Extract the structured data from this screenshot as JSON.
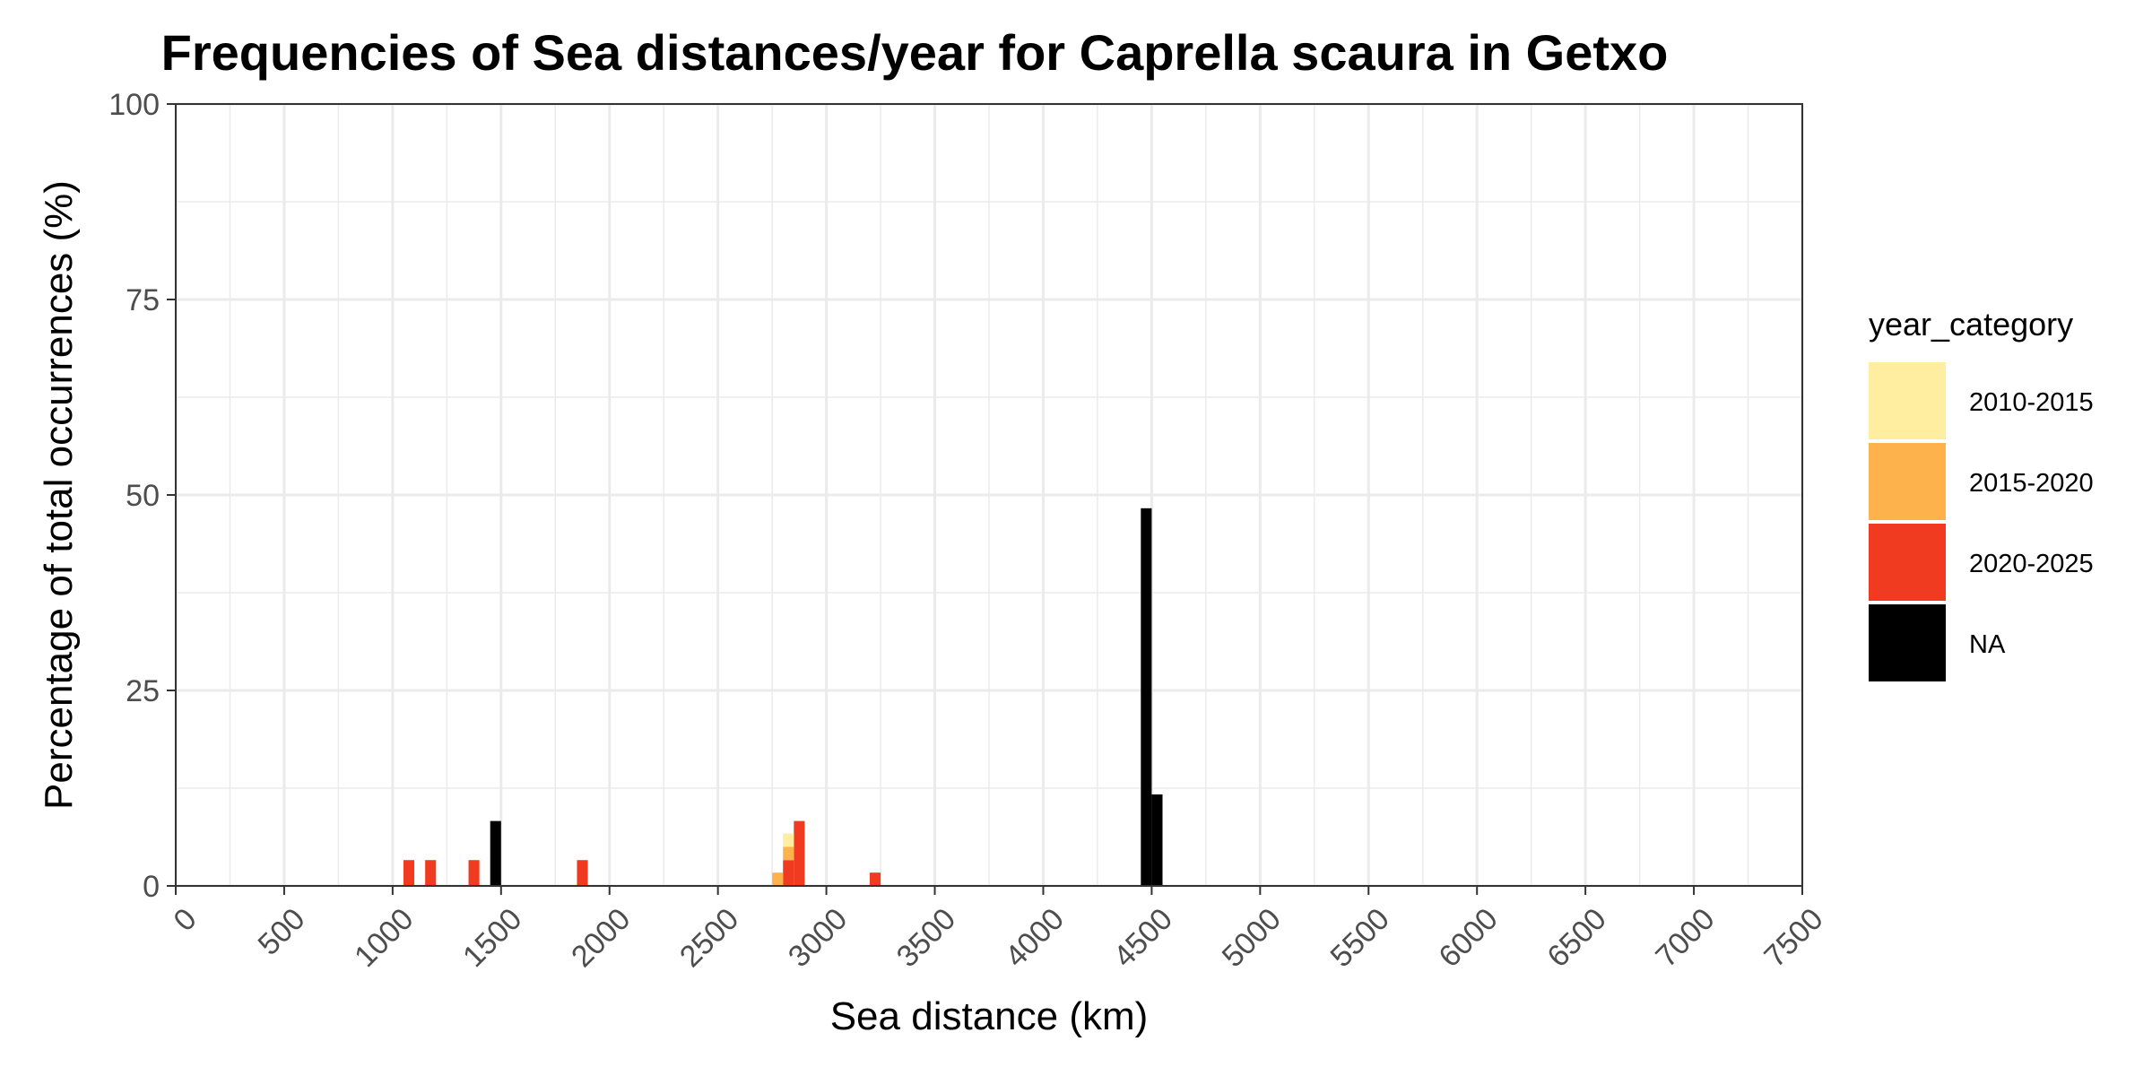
{
  "chart_data": {
    "type": "bar",
    "stacked": true,
    "title": "Frequencies of Sea distances/year for Caprella scaura in Getxo",
    "xlabel": "Sea distance (km)",
    "ylabel": "Percentage of total occurrences (%)",
    "xlim": [
      0,
      7500
    ],
    "ylim": [
      0,
      100
    ],
    "bin_width": 50,
    "x_ticks": [
      0,
      500,
      1000,
      1500,
      2000,
      2500,
      3000,
      3500,
      4000,
      4500,
      5000,
      5500,
      6000,
      6500,
      7000,
      7500
    ],
    "y_ticks": [
      0,
      25,
      50,
      75,
      100
    ],
    "grid": true,
    "legend": {
      "title": "year_category",
      "position": "right",
      "entries": [
        "2010-2015",
        "2015-2020",
        "2020-2025",
        "NA"
      ]
    },
    "colors": {
      "2010-2015": "#FFEDA0",
      "2015-2020": "#FEB24C",
      "2020-2025": "#F03B20",
      "NA": "#000000"
    },
    "series": [
      {
        "name": "NA",
        "bins": [
          {
            "x": 1475,
            "value": 8.3
          },
          {
            "x": 4475,
            "value": 48.3
          },
          {
            "x": 4525,
            "value": 11.7
          }
        ]
      },
      {
        "name": "2020-2025",
        "bins": [
          {
            "x": 1075,
            "value": 3.3
          },
          {
            "x": 1175,
            "value": 3.3
          },
          {
            "x": 1375,
            "value": 3.3
          },
          {
            "x": 1875,
            "value": 3.3
          },
          {
            "x": 2825,
            "value": 3.3
          },
          {
            "x": 2875,
            "value": 8.3
          },
          {
            "x": 3225,
            "value": 1.7
          }
        ]
      },
      {
        "name": "2015-2020",
        "bins": [
          {
            "x": 2775,
            "value": 1.7
          },
          {
            "x": 2825,
            "value": 1.7
          }
        ]
      },
      {
        "name": "2010-2015",
        "bins": [
          {
            "x": 2825,
            "value": 1.7
          }
        ]
      }
    ]
  }
}
